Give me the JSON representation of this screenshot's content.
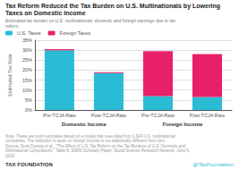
{
  "chart_data": {
    "type": "bar",
    "stacked": true,
    "title": "Tax Reform Reduced the Tax Burden on U.S. Multinationals by Lowering Taxes on Domestic Income",
    "subtitle": "Estimated tax burden on U.S. multinationals' domestic and foreign earnings due to tax reform.",
    "ylabel": "Estimated Tax Rate",
    "groups": [
      "Domestic Income",
      "Foreign Income"
    ],
    "categories": [
      "Pre-TCJA Rate",
      "Post-TCJA Rate",
      "Pre-TCJA Rate",
      "Post-TCJA Rate"
    ],
    "series": [
      {
        "name": "U.S. Taxes",
        "color": "#29bcd4",
        "values": [
          30.0,
          18.5,
          7.0,
          6.5
        ]
      },
      {
        "name": "Foreign Taxes",
        "color": "#e8206a",
        "values": [
          0.5,
          0.5,
          22.5,
          21.5
        ]
      }
    ],
    "ylim": [
      0,
      35
    ],
    "yticks": [
      {
        "value": 0,
        "label": "0%"
      },
      {
        "value": 5,
        "label": "5%"
      },
      {
        "value": 10,
        "label": "10%"
      },
      {
        "value": 15,
        "label": "15%"
      },
      {
        "value": 20,
        "label": "20%"
      },
      {
        "value": 25,
        "label": "25%"
      },
      {
        "value": 30,
        "label": "30%"
      },
      {
        "value": 35,
        "label": "35%"
      }
    ],
    "grid": true,
    "legend": "upper left",
    "note": "Note: These are point estimates based on a model that uses data from 1,624 U.S. multinational companies. The reduction in taxes on foreign income is not statistically different from zero.\nSource: Scott Dyreng et al., \"The Effect of U.S. Tax Reform on the Tax Burdens of U.S. Domestic and Multinational Corporations,\" Table 8, SSRN Scholarly Paper, Social Science Research Network, June 5, 2020.",
    "footer_left": "TAX FOUNDATION",
    "footer_right": "@TaxFoundation"
  }
}
